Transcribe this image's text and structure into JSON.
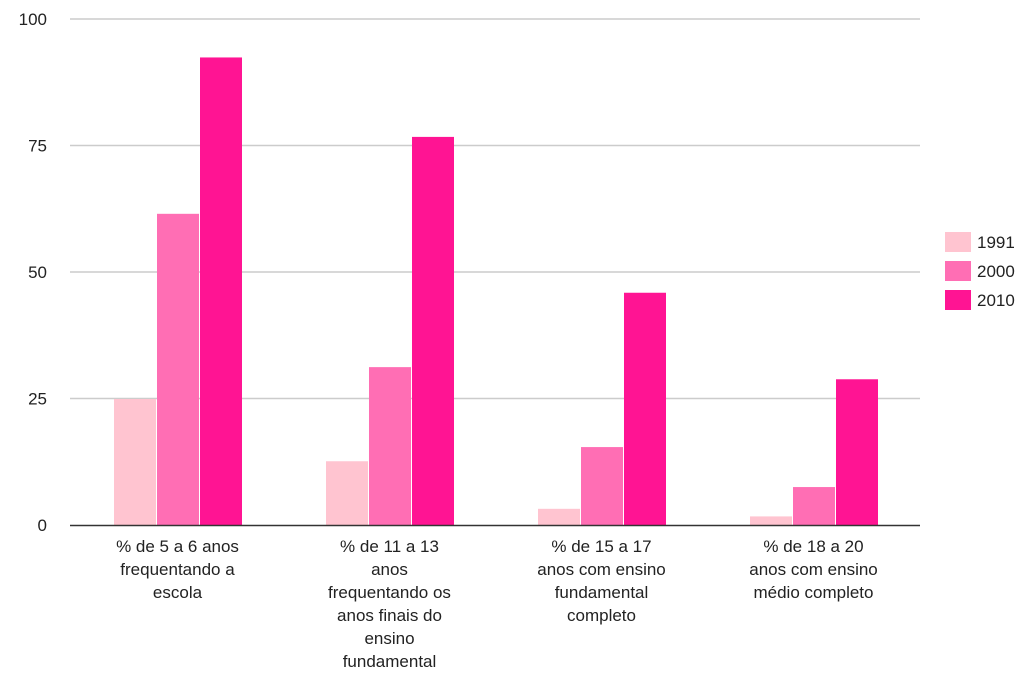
{
  "chart_data": {
    "type": "bar",
    "title": "",
    "xlabel": "",
    "ylabel": "",
    "ylim": [
      0,
      100
    ],
    "yticks": [
      0,
      25,
      50,
      75,
      100
    ],
    "grid": true,
    "legend_position": "right",
    "categories": [
      [
        "% de 5 a 6 anos",
        "frequentando a",
        "escola"
      ],
      [
        "% de 11 a 13",
        "anos",
        "frequentando os",
        "anos finais do",
        "ensino",
        "fundamental"
      ],
      [
        "% de 15 a 17",
        "anos com ensino",
        "fundamental",
        "completo"
      ],
      [
        "% de 18 a 20",
        "anos com ensino",
        "médio completo"
      ]
    ],
    "series": [
      {
        "name": "1991",
        "color": "#ffc4d0",
        "values": [
          24.9,
          12.6,
          3.2,
          1.7
        ]
      },
      {
        "name": "2000",
        "color": "#ff6eb4",
        "values": [
          61.5,
          31.2,
          15.4,
          7.5
        ]
      },
      {
        "name": "2010",
        "color": "#ff1493",
        "values": [
          92.4,
          76.7,
          45.9,
          28.8
        ]
      }
    ]
  }
}
